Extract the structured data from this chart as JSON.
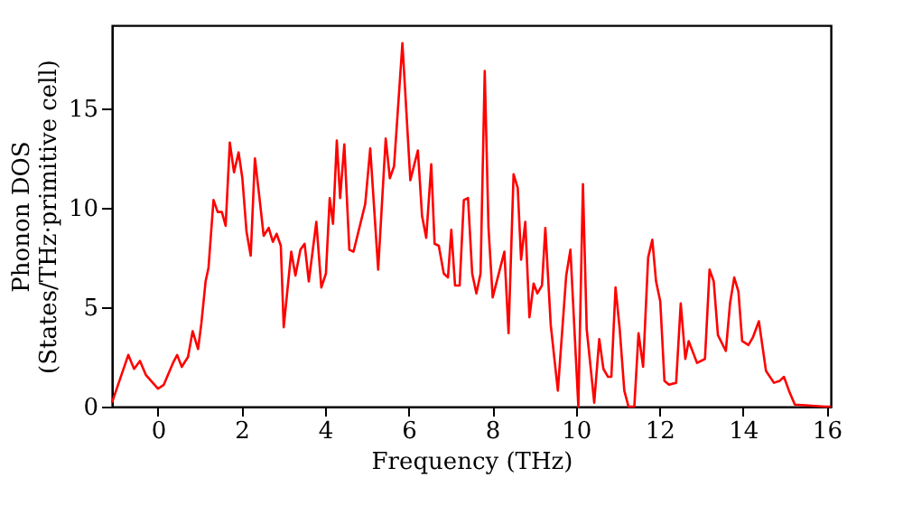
{
  "chart_data": {
    "type": "line",
    "xlabel": "Frequency (THz)",
    "ylabel": "Phonon DOS\n(States/THz·primitive cell)",
    "xlim": [
      -1.1,
      16.1
    ],
    "ylim": [
      0,
      19.2
    ],
    "xticks": [
      0,
      2,
      4,
      6,
      8,
      10,
      12,
      14,
      16
    ],
    "yticks": [
      0,
      5,
      10,
      15
    ],
    "grid": false,
    "marker": "none",
    "line_style": "solid",
    "series": [
      {
        "color": "#ff0000",
        "x": [
          -1.1,
          -0.71,
          -0.57,
          -0.43,
          -0.29,
          0,
          0.14,
          0.36,
          0.46,
          0.57,
          0.72,
          0.83,
          0.96,
          1.04,
          1.14,
          1.21,
          1.33,
          1.43,
          1.53,
          1.62,
          1.72,
          1.82,
          1.93,
          2.02,
          2.12,
          2.22,
          2.32,
          2.43,
          2.53,
          2.65,
          2.75,
          2.84,
          2.94,
          3.01,
          3.19,
          3.29,
          3.41,
          3.51,
          3.61,
          3.79,
          3.91,
          4.02,
          4.11,
          4.19,
          4.28,
          4.36,
          4.46,
          4.58,
          4.68,
          4.96,
          5.08,
          5.27,
          5.45,
          5.55,
          5.65,
          5.85,
          6.04,
          6.22,
          6.32,
          6.42,
          6.54,
          6.62,
          6.72,
          6.84,
          6.94,
          7.02,
          7.11,
          7.22,
          7.32,
          7.42,
          7.52,
          7.62,
          7.72,
          7.82,
          7.91,
          8.01,
          8.29,
          8.39,
          8.51,
          8.61,
          8.69,
          8.79,
          8.89,
          8.99,
          9.08,
          9.19,
          9.27,
          9.4,
          9.57,
          9.77,
          9.87,
          10.06,
          10.17,
          10.26,
          10.44,
          10.56,
          10.66,
          10.77,
          10.85,
          10.95,
          11.05,
          11.16,
          11.26,
          11.4,
          11.5,
          11.61,
          11.73,
          11.83,
          11.92,
          12.02,
          12.12,
          12.23,
          12.4,
          12.51,
          12.62,
          12.7,
          12.9,
          13.09,
          13.2,
          13.3,
          13.4,
          13.59,
          13.69,
          13.79,
          13.89,
          13.98,
          14.13,
          14.24,
          14.38,
          14.55,
          14.74,
          14.88,
          14.98,
          15.1,
          15.24,
          15.96,
          16.1
        ],
        "values": [
          0.2,
          2.6,
          1.9,
          2.3,
          1.6,
          0.9,
          1.1,
          2.2,
          2.6,
          2.0,
          2.5,
          3.8,
          2.9,
          4.2,
          6.3,
          7.0,
          10.4,
          9.8,
          9.8,
          9.1,
          13.3,
          11.8,
          12.8,
          11.5,
          8.8,
          7.6,
          12.5,
          10.5,
          8.6,
          9.0,
          8.3,
          8.7,
          8.1,
          4.0,
          7.8,
          6.6,
          7.9,
          8.2,
          6.3,
          9.3,
          6.0,
          6.7,
          10.5,
          9.2,
          13.4,
          10.5,
          13.2,
          7.9,
          7.8,
          10.2,
          13.0,
          6.9,
          13.5,
          11.5,
          12.1,
          18.3,
          11.4,
          12.9,
          9.6,
          8.5,
          12.2,
          8.2,
          8.1,
          6.7,
          6.5,
          8.9,
          6.1,
          6.1,
          10.4,
          10.5,
          6.7,
          5.7,
          6.7,
          16.9,
          9.0,
          5.5,
          7.8,
          3.7,
          11.7,
          11.0,
          7.4,
          9.3,
          4.5,
          6.2,
          5.7,
          6.1,
          9.0,
          4.1,
          0.8,
          6.6,
          7.9,
          0,
          11.2,
          3.9,
          0.2,
          3.4,
          1.9,
          1.5,
          1.5,
          6.0,
          3.9,
          0.8,
          0,
          0,
          3.7,
          2.0,
          7.5,
          8.4,
          6.3,
          5.3,
          1.3,
          1.1,
          1.2,
          5.2,
          2.4,
          3.3,
          2.2,
          2.4,
          6.9,
          6.3,
          3.6,
          2.8,
          5.2,
          6.5,
          5.8,
          3.3,
          3.1,
          3.5,
          4.3,
          1.8,
          1.2,
          1.3,
          1.5,
          0.8,
          0.1,
          0,
          0
        ]
      }
    ]
  }
}
